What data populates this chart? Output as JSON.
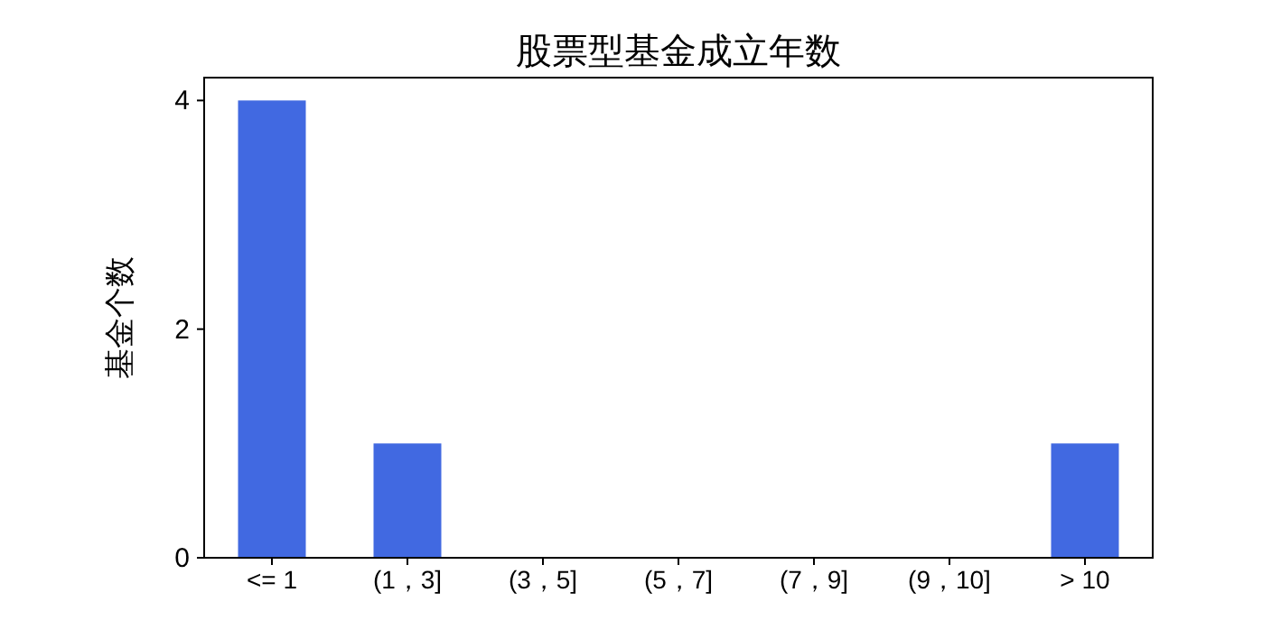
{
  "chart_data": {
    "type": "bar",
    "title": "股票型基金成立年数",
    "ylabel": "基金个数",
    "categories": [
      "<= 1",
      "(1，3]",
      "(3，5]",
      "(5，7]",
      "(7，9]",
      "(9，10]",
      "> 10"
    ],
    "values": [
      4,
      1,
      0,
      0,
      0,
      0,
      1
    ],
    "color": "#4169e1",
    "ylim": [
      0,
      4.2
    ],
    "yticks": [
      0,
      2,
      4
    ],
    "grid": false
  }
}
